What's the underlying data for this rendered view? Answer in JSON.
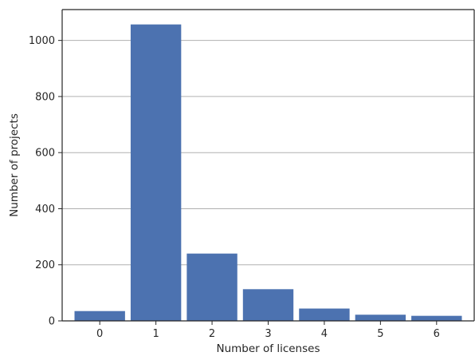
{
  "chart_data": {
    "type": "bar",
    "title": "",
    "xlabel": "Number of licenses",
    "ylabel": "Number of projects",
    "categories": [
      "0",
      "1",
      "2",
      "3",
      "4",
      "5",
      "6"
    ],
    "values": [
      35,
      1057,
      240,
      113,
      44,
      22,
      18
    ],
    "ylim": [
      0,
      1110
    ],
    "yticks": [
      0,
      200,
      400,
      600,
      800,
      1000
    ],
    "grid": "horizontal",
    "bar_color": "#4c72b0",
    "grid_color": "#b0b0b0",
    "axis_color": "#262626"
  }
}
